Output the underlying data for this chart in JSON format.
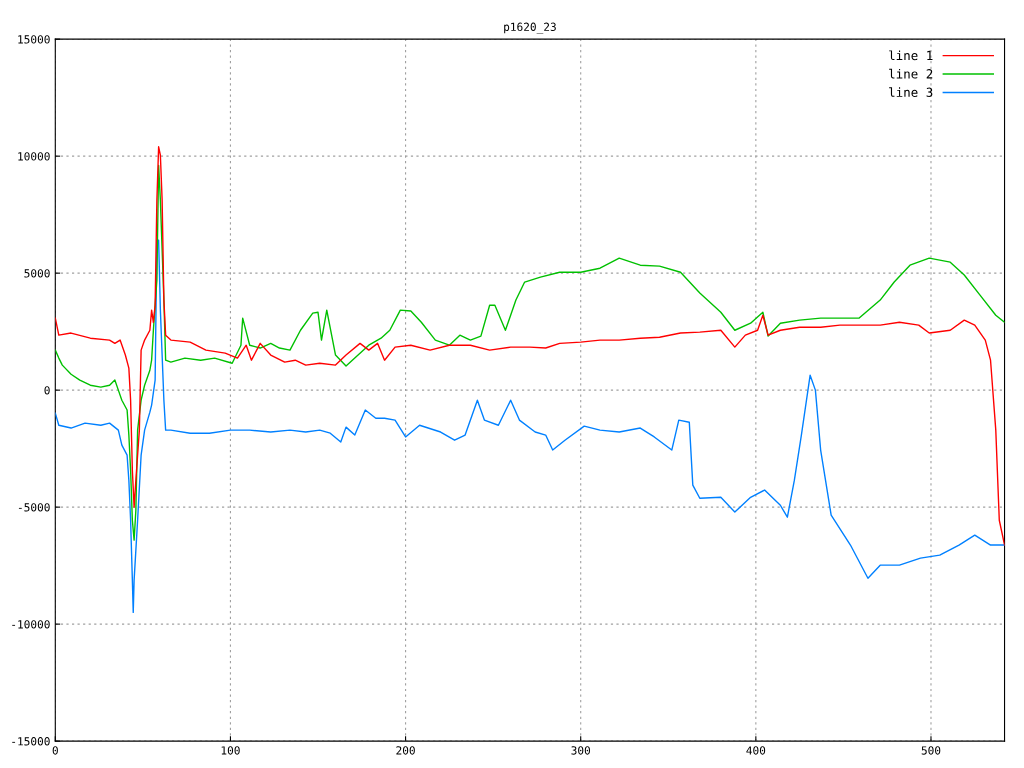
{
  "chart_data": {
    "type": "line",
    "title": "p1620_23",
    "xlim": [
      0,
      542
    ],
    "ylim": [
      -15000,
      15000
    ],
    "xticks": [
      0,
      100,
      200,
      300,
      400,
      500
    ],
    "yticks": [
      -15000,
      -10000,
      -5000,
      0,
      5000,
      10000,
      15000
    ],
    "grid": true,
    "legend": "top right",
    "marker": "none",
    "line_style": "solid",
    "series": [
      {
        "name": "line 1",
        "color": "#ff0000",
        "x": [
          0,
          2,
          9,
          20,
          31,
          34,
          37,
          40,
          42,
          43,
          44,
          45,
          46,
          48,
          49,
          51,
          54,
          55,
          56,
          57,
          58,
          59,
          60,
          61,
          62,
          63,
          66,
          77,
          86,
          97,
          104,
          109,
          112,
          117,
          123,
          131,
          137,
          143,
          151,
          160,
          166,
          174,
          179,
          184,
          188,
          194,
          203,
          214,
          225,
          237,
          248,
          260,
          271,
          280,
          288,
          300,
          311,
          322,
          334,
          345,
          357,
          368,
          380,
          388,
          394,
          401,
          404,
          407,
          414,
          425,
          437,
          448,
          459,
          471,
          482,
          493,
          499,
          511,
          519,
          525,
          531,
          534,
          537,
          539,
          542
        ],
        "values": [
          3080,
          2350,
          2440,
          2220,
          2140,
          2000,
          2140,
          1500,
          940,
          -430,
          -3420,
          -5000,
          -3850,
          -1710,
          1710,
          2140,
          2560,
          3420,
          2900,
          3630,
          8120,
          10400,
          10040,
          8120,
          3850,
          2350,
          2140,
          2050,
          1710,
          1580,
          1370,
          1920,
          1280,
          2000,
          1500,
          1200,
          1280,
          1070,
          1150,
          1070,
          1500,
          2000,
          1710,
          2000,
          1280,
          1840,
          1920,
          1710,
          1920,
          1920,
          1710,
          1840,
          1840,
          1800,
          2000,
          2050,
          2140,
          2140,
          2220,
          2260,
          2440,
          2480,
          2560,
          1840,
          2350,
          2560,
          3200,
          2350,
          2560,
          2690,
          2690,
          2780,
          2780,
          2780,
          2900,
          2780,
          2440,
          2560,
          2990,
          2780,
          2140,
          1280,
          -1710,
          -5560,
          -6620
        ]
      },
      {
        "name": "line 2",
        "color": "#00c000",
        "x": [
          0,
          2,
          4,
          9,
          14,
          20,
          26,
          31,
          34,
          36,
          38,
          41,
          42,
          43,
          44,
          45,
          46,
          47,
          49,
          51,
          54,
          55,
          56,
          58,
          59,
          60,
          62,
          63,
          66,
          74,
          83,
          91,
          101,
          106,
          107,
          111,
          117,
          123,
          128,
          134,
          140,
          147,
          150,
          152,
          155,
          160,
          166,
          171,
          179,
          186,
          191,
          197,
          203,
          209,
          217,
          225,
          231,
          237,
          243,
          248,
          251,
          257,
          263,
          268,
          277,
          288,
          300,
          311,
          322,
          334,
          345,
          357,
          368,
          380,
          388,
          397,
          404,
          407,
          414,
          425,
          437,
          448,
          459,
          471,
          479,
          488,
          499,
          511,
          519,
          528,
          537,
          542
        ],
        "values": [
          1710,
          1370,
          1070,
          680,
          430,
          210,
          130,
          210,
          430,
          0,
          -430,
          -850,
          -1920,
          -3420,
          -5560,
          -6410,
          -5130,
          -1710,
          -430,
          210,
          850,
          1280,
          2560,
          4700,
          9600,
          8120,
          3850,
          1280,
          1200,
          1370,
          1280,
          1370,
          1150,
          1920,
          3080,
          1920,
          1800,
          2000,
          1800,
          1710,
          2560,
          3290,
          3330,
          2140,
          3420,
          1500,
          1030,
          1370,
          1920,
          2220,
          2560,
          3420,
          3380,
          2900,
          2140,
          1920,
          2350,
          2140,
          2310,
          3630,
          3630,
          2560,
          3850,
          4620,
          4830,
          5040,
          5040,
          5210,
          5640,
          5340,
          5300,
          5040,
          4150,
          3330,
          2560,
          2860,
          3330,
          2310,
          2860,
          2990,
          3080,
          3080,
          3080,
          3850,
          4620,
          5340,
          5640,
          5470,
          4920,
          4060,
          3200,
          2900
        ]
      },
      {
        "name": "line 3",
        "color": "#0080ff",
        "x": [
          0,
          2,
          9,
          17,
          26,
          31,
          36,
          38,
          41,
          42,
          43,
          44,
          44.5,
          45,
          47,
          49,
          51,
          54,
          55,
          57,
          58,
          59,
          60,
          62,
          63,
          66,
          77,
          88,
          100,
          111,
          123,
          134,
          143,
          151,
          157,
          163,
          166,
          171,
          177,
          183,
          188,
          194,
          200,
          208,
          220,
          228,
          234,
          241,
          245,
          253,
          260,
          265,
          274,
          280,
          284,
          291,
          302,
          311,
          322,
          334,
          342,
          352,
          356,
          362,
          364,
          368,
          380,
          388,
          397,
          405,
          414,
          418,
          422,
          426,
          431,
          434,
          437,
          443,
          454,
          464,
          471,
          482,
          494,
          505,
          516,
          525,
          534,
          542
        ],
        "values": [
          -980,
          -1500,
          -1620,
          -1410,
          -1500,
          -1410,
          -1710,
          -2350,
          -2780,
          -3850,
          -5560,
          -8120,
          -9500,
          -8120,
          -5560,
          -2780,
          -1710,
          -940,
          -640,
          430,
          6410,
          6410,
          3420,
          -430,
          -1710,
          -1710,
          -1840,
          -1840,
          -1710,
          -1710,
          -1790,
          -1710,
          -1790,
          -1710,
          -1840,
          -2220,
          -1580,
          -1920,
          -850,
          -1200,
          -1200,
          -1280,
          -2000,
          -1500,
          -1790,
          -2140,
          -1920,
          -430,
          -1280,
          -1500,
          -430,
          -1280,
          -1790,
          -1920,
          -2560,
          -2140,
          -1540,
          -1710,
          -1790,
          -1620,
          -2000,
          -2560,
          -1280,
          -1370,
          -4060,
          -4620,
          -4580,
          -5210,
          -4580,
          -4270,
          -4920,
          -5430,
          -3850,
          -1920,
          640,
          0,
          -2560,
          -5340,
          -6620,
          -8040,
          -7480,
          -7480,
          -7180,
          -7050,
          -6620,
          -6200,
          -6620,
          -6620
        ]
      }
    ]
  }
}
